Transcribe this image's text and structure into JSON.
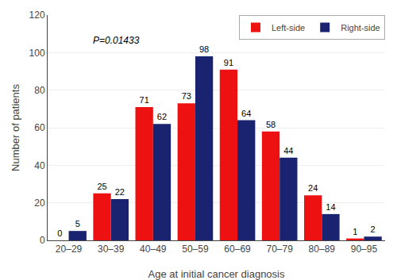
{
  "chart_data": {
    "type": "bar",
    "categories": [
      "20–29",
      "30–39",
      "40–49",
      "50–59",
      "60–69",
      "70–79",
      "80–89",
      "90–95"
    ],
    "series": [
      {
        "name": "Left-side",
        "color": "#EE1111",
        "values": [
          0,
          25,
          71,
          73,
          91,
          58,
          24,
          1
        ]
      },
      {
        "name": "Right-side",
        "color": "#1A2370",
        "values": [
          5,
          22,
          62,
          98,
          64,
          44,
          14,
          2
        ]
      }
    ],
    "xlabel": "Age at initial cancer diagnosis",
    "ylabel": "Number of patients",
    "ylim": [
      0,
      120
    ],
    "yticks": [
      0,
      20,
      40,
      60,
      80,
      100,
      120
    ],
    "annotation": "P=0.01433",
    "grid": true,
    "legend": "upper right",
    "data_labels": true
  }
}
